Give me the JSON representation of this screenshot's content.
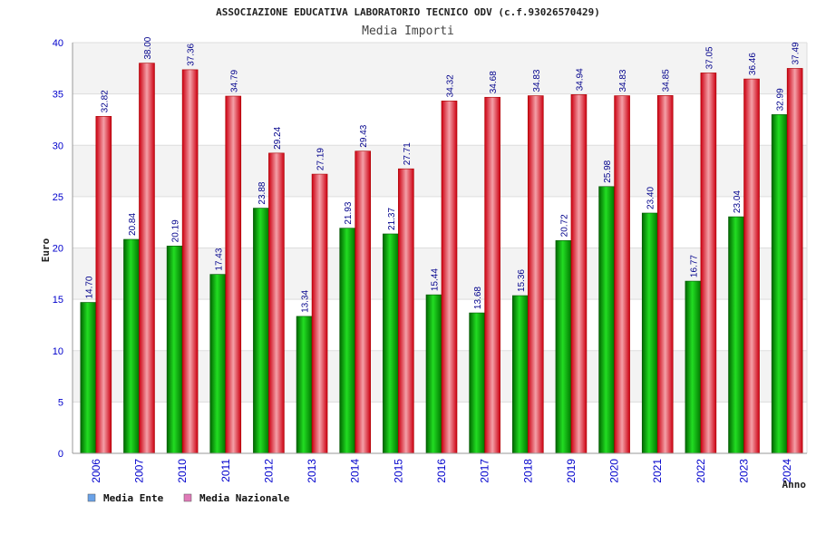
{
  "chart_data": {
    "type": "bar",
    "title": "ASSOCIAZIONE EDUCATIVA LABORATORIO TECNICO ODV (c.f.93026570429)",
    "subtitle": "Media Importi",
    "xlabel": "Anno",
    "ylabel": "Euro",
    "ylim": [
      0,
      40
    ],
    "yticks": [
      0,
      5,
      10,
      15,
      20,
      25,
      30,
      35,
      40
    ],
    "grid": true,
    "legend_position": "bottom-left",
    "categories": [
      "2006",
      "2007",
      "2010",
      "2011",
      "2012",
      "2013",
      "2014",
      "2015",
      "2016",
      "2017",
      "2018",
      "2019",
      "2020",
      "2021",
      "2022",
      "2023",
      "2024"
    ],
    "series": [
      {
        "name": "Media Ente",
        "color": "#00aa00",
        "legend_color": "#6aa2e8",
        "values": [
          14.7,
          20.84,
          20.19,
          17.43,
          23.88,
          13.34,
          21.93,
          21.37,
          15.44,
          13.68,
          15.36,
          20.72,
          25.98,
          23.4,
          16.77,
          23.04,
          32.99
        ],
        "labels": [
          "14.70",
          "20.84",
          "20.19",
          "17.43",
          "23.88",
          "13.34",
          "21.93",
          "21.37",
          "15.44",
          "13.68",
          "15.36",
          "20.72",
          "25.98",
          "23.40",
          "16.77",
          "23.04",
          "32.99"
        ]
      },
      {
        "name": "Media Nazionale",
        "color": "#ee1122",
        "legend_color": "#e07ab8",
        "values": [
          32.82,
          38.0,
          37.36,
          34.79,
          29.24,
          27.19,
          29.43,
          27.71,
          34.32,
          34.68,
          34.83,
          34.94,
          34.83,
          34.85,
          37.05,
          36.46,
          37.49
        ],
        "labels": [
          "32.82",
          "38.00",
          "37.36",
          "34.79",
          "29.24",
          "27.19",
          "29.43",
          "27.71",
          "34.32",
          "34.68",
          "34.83",
          "34.94",
          "34.83",
          "34.85",
          "37.05",
          "36.46",
          "37.49"
        ]
      }
    ]
  }
}
